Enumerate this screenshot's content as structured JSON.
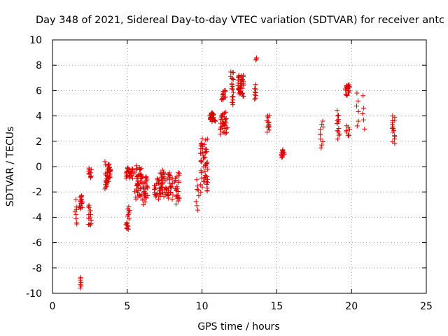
{
  "colors": {
    "series": "#dd0000",
    "grid": "#a0a0a0",
    "axis": "#000000",
    "background": "#ffffff"
  },
  "chart_data": {
    "type": "scatter",
    "title": "Day 348 of 2021, Sidereal Day-to-day VTEC variation (SDTVAR) for receiver antc",
    "xlabel": "GPS time / hours",
    "ylabel": "SDTVAR / TECUs",
    "xlim": [
      0,
      25
    ],
    "ylim": [
      -10,
      10
    ],
    "xticks": [
      0,
      5,
      10,
      15,
      20,
      25
    ],
    "yticks": [
      -10,
      -8,
      -6,
      -4,
      -2,
      0,
      2,
      4,
      6,
      8,
      10
    ],
    "grid": true,
    "marker": "+",
    "series": [
      {
        "name": "SDTVAR",
        "clusters": [
          {
            "x": [
              1.5,
              1.65
            ],
            "y": [
              -4.8,
              -2.6
            ],
            "n": 8
          },
          {
            "x": [
              1.8,
              2.0
            ],
            "y": [
              -3.4,
              -2.2
            ],
            "n": 18
          },
          {
            "x": [
              1.85,
              1.95
            ],
            "y": [
              -9.7,
              -8.7
            ],
            "n": 7
          },
          {
            "x": [
              2.4,
              2.6
            ],
            "y": [
              -4.9,
              -2.9
            ],
            "n": 14
          },
          {
            "x": [
              2.4,
              2.6
            ],
            "y": [
              -0.9,
              -0.1
            ],
            "n": 10
          },
          {
            "x": [
              3.5,
              3.9
            ],
            "y": [
              -1.8,
              0.4
            ],
            "n": 40
          },
          {
            "x": [
              4.9,
              5.1
            ],
            "y": [
              -5.0,
              -4.4
            ],
            "n": 10
          },
          {
            "x": [
              5.0,
              5.2
            ],
            "y": [
              -4.2,
              -3.1
            ],
            "n": 8
          },
          {
            "x": [
              4.9,
              5.4
            ],
            "y": [
              -1.0,
              0.0
            ],
            "n": 30
          },
          {
            "x": [
              5.5,
              6.0
            ],
            "y": [
              -2.6,
              0.2
            ],
            "n": 45
          },
          {
            "x": [
              6.0,
              6.4
            ],
            "y": [
              -3.1,
              -0.6
            ],
            "n": 30
          },
          {
            "x": [
              6.8,
              7.2
            ],
            "y": [
              -2.7,
              -0.8
            ],
            "n": 25
          },
          {
            "x": [
              7.2,
              7.7
            ],
            "y": [
              -2.5,
              -0.2
            ],
            "n": 35
          },
          {
            "x": [
              7.7,
              8.2
            ],
            "y": [
              -2.6,
              -0.3
            ],
            "n": 25
          },
          {
            "x": [
              8.2,
              8.5
            ],
            "y": [
              -3.1,
              -0.3
            ],
            "n": 22
          },
          {
            "x": [
              9.6,
              9.8
            ],
            "y": [
              -3.5,
              -0.8
            ],
            "n": 8
          },
          {
            "x": [
              9.9,
              10.4
            ],
            "y": [
              -2.2,
              2.6
            ],
            "n": 55
          },
          {
            "x": [
              10.5,
              10.9
            ],
            "y": [
              3.5,
              4.3
            ],
            "n": 28
          },
          {
            "x": [
              11.2,
              11.7
            ],
            "y": [
              2.5,
              4.4
            ],
            "n": 35
          },
          {
            "x": [
              11.3,
              11.6
            ],
            "y": [
              5.2,
              6.1
            ],
            "n": 15
          },
          {
            "x": [
              11.9,
              12.1
            ],
            "y": [
              4.6,
              7.9
            ],
            "n": 20
          },
          {
            "x": [
              12.4,
              12.8
            ],
            "y": [
              5.4,
              7.4
            ],
            "n": 40
          },
          {
            "x": [
              13.5,
              13.6
            ],
            "y": [
              5.2,
              6.6
            ],
            "n": 10
          },
          {
            "x": [
              13.55,
              13.65
            ],
            "y": [
              8.4,
              8.6
            ],
            "n": 3
          },
          {
            "x": [
              14.3,
              14.5
            ],
            "y": [
              2.7,
              4.2
            ],
            "n": 15
          },
          {
            "x": [
              15.3,
              15.5
            ],
            "y": [
              0.7,
              1.4
            ],
            "n": 15
          },
          {
            "x": [
              17.9,
              18.1
            ],
            "y": [
              1.4,
              3.8
            ],
            "n": 10
          },
          {
            "x": [
              19.0,
              19.2
            ],
            "y": [
              2.1,
              4.5
            ],
            "n": 14
          },
          {
            "x": [
              19.6,
              19.9
            ],
            "y": [
              2.3,
              3.3
            ],
            "n": 8
          },
          {
            "x": [
              19.6,
              19.9
            ],
            "y": [
              5.6,
              6.6
            ],
            "n": 22
          },
          {
            "x": [
              20.3,
              20.5
            ],
            "y": [
              3.1,
              5.8
            ],
            "n": 6
          },
          {
            "x": [
              20.7,
              20.9
            ],
            "y": [
              2.7,
              5.7
            ],
            "n": 5
          },
          {
            "x": [
              22.7,
              22.9
            ],
            "y": [
              1.7,
              4.2
            ],
            "n": 16
          }
        ]
      }
    ]
  }
}
